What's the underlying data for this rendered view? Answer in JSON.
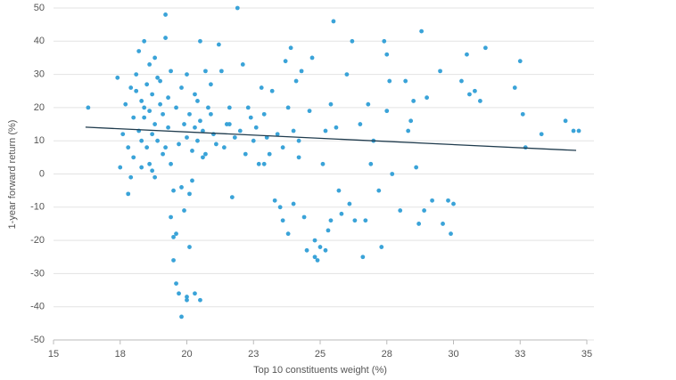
{
  "chart_data": {
    "type": "scatter",
    "xlabel": "Top 10 constituents weight (%)",
    "ylabel": "1-year forward return (%)",
    "color": "#3aa3d8",
    "trend_color": "#1f3b4d",
    "grid": true,
    "xlim": [
      15,
      35
    ],
    "ylim": [
      -50,
      50
    ],
    "xticks": [
      15,
      {
        "value": 17.5,
        "label": "18"
      },
      20,
      {
        "value": 22.5,
        "label": "23"
      },
      25,
      {
        "value": 27.5,
        "label": "28"
      },
      30,
      {
        "value": 32.5,
        "label": "33"
      },
      35
    ],
    "yticks": [
      -50,
      -40,
      -30,
      -20,
      -10,
      0,
      10,
      20,
      30,
      40,
      50
    ],
    "trendline": {
      "x": [
        16.2,
        34.6
      ],
      "y": [
        14.1,
        7.1
      ]
    },
    "x": [
      16.3,
      17.4,
      17.5,
      17.6,
      17.7,
      17.8,
      17.8,
      17.9,
      18,
      18,
      18.1,
      18.2,
      18.2,
      18.3,
      18.3,
      18.4,
      18.4,
      18.5,
      18.5,
      18.6,
      18.6,
      18.7,
      18.7,
      18.8,
      18.8,
      18.9,
      19,
      19,
      19.1,
      19.1,
      19.2,
      19.2,
      19.3,
      19.3,
      19.4,
      19.4,
      19.5,
      19.5,
      19.5,
      19.6,
      19.6,
      19.7,
      19.8,
      19.8,
      19.9,
      20,
      20,
      20.1,
      20.1,
      20.2,
      20.3,
      20.5,
      19.6,
      19.7,
      19.8,
      19.9,
      20,
      20,
      20.1,
      20.2,
      20.3,
      20.3,
      20.4,
      20.5,
      20.5,
      20.6,
      20.7,
      20.7,
      20.8,
      20.9,
      21,
      21.1,
      21.2,
      21.3,
      21.5,
      21.6,
      21.7,
      21.8,
      21.9,
      22,
      22.1,
      22.2,
      22.4,
      22.5,
      22.6,
      22.7,
      22.8,
      22.9,
      23,
      23.1,
      23.2,
      23.3,
      23.4,
      23.5,
      23.6,
      23.7,
      23.8,
      23.8,
      23.9,
      24,
      24,
      24.1,
      24.2,
      24.3,
      24.4,
      24.5,
      24.6,
      24.7,
      24.8,
      24.8,
      24.9,
      25,
      25.1,
      25.2,
      25.3,
      25.4,
      25.4,
      25.5,
      25.6,
      25.7,
      25.8,
      26,
      26.1,
      26.2,
      26.3,
      26.5,
      26.6,
      26.7,
      26.8,
      26.9,
      27,
      27.2,
      27.3,
      27.4,
      27.5,
      27.5,
      27.6,
      27.7,
      28,
      28.2,
      28.3,
      28.4,
      28.5,
      28.6,
      28.7,
      28.8,
      28.9,
      29,
      29.2,
      29.5,
      29.6,
      29.8,
      29.9,
      30,
      30.3,
      30.5,
      30.6,
      30.8,
      31,
      31.2,
      32.3,
      32.5,
      32.6,
      32.7,
      33.3,
      34.2,
      34.5,
      34.7,
      18.1,
      18.3,
      18.6,
      18.9,
      19.2,
      18.4,
      18.7,
      20.4,
      20.6,
      21.4,
      22.3,
      23.6,
      24.2,
      25.2,
      17.9,
      18.8,
      19.4,
      20.9,
      21.6,
      22.9
    ],
    "values": [
      20,
      29,
      2,
      12,
      21,
      -6,
      8,
      26,
      17,
      5,
      30,
      37,
      13,
      22,
      2,
      40,
      17,
      27,
      8,
      33,
      19,
      24,
      1,
      15,
      35,
      10,
      21,
      28,
      6,
      18,
      48,
      41,
      23,
      14,
      31,
      -13,
      -5,
      -19,
      -26,
      -33,
      -18,
      -36,
      -43,
      -4,
      -11,
      -38,
      -37,
      -6,
      -22,
      -2,
      -36,
      -38,
      20,
      9,
      26,
      15,
      30,
      11,
      18,
      7,
      14,
      24,
      10,
      40,
      16,
      13,
      31,
      6,
      20,
      27,
      12,
      9,
      39,
      31,
      15,
      20,
      -7,
      11,
      50,
      13,
      33,
      6,
      17,
      10,
      14,
      3,
      26,
      18,
      11,
      6,
      25,
      -8,
      12,
      -10,
      -14,
      34,
      -18,
      20,
      38,
      13,
      -9,
      28,
      5,
      31,
      -13,
      -23,
      19,
      35,
      -20,
      -25,
      -26,
      -22,
      3,
      -23,
      -17,
      -14,
      21,
      46,
      14,
      -5,
      -12,
      30,
      -9,
      40,
      -14,
      15,
      -25,
      -14,
      21,
      3,
      10,
      -5,
      -22,
      40,
      36,
      19,
      28,
      0,
      -11,
      28,
      13,
      16,
      22,
      2,
      -15,
      43,
      -11,
      23,
      -8,
      31,
      -15,
      -8,
      -18,
      -9,
      28,
      36,
      24,
      25,
      22,
      38,
      26,
      34,
      18,
      8,
      12,
      16,
      13,
      13,
      25,
      10,
      3,
      29,
      8,
      20,
      12,
      22,
      5,
      8,
      20,
      8,
      10,
      13,
      -1,
      -1,
      3,
      18,
      15,
      3
    ]
  }
}
